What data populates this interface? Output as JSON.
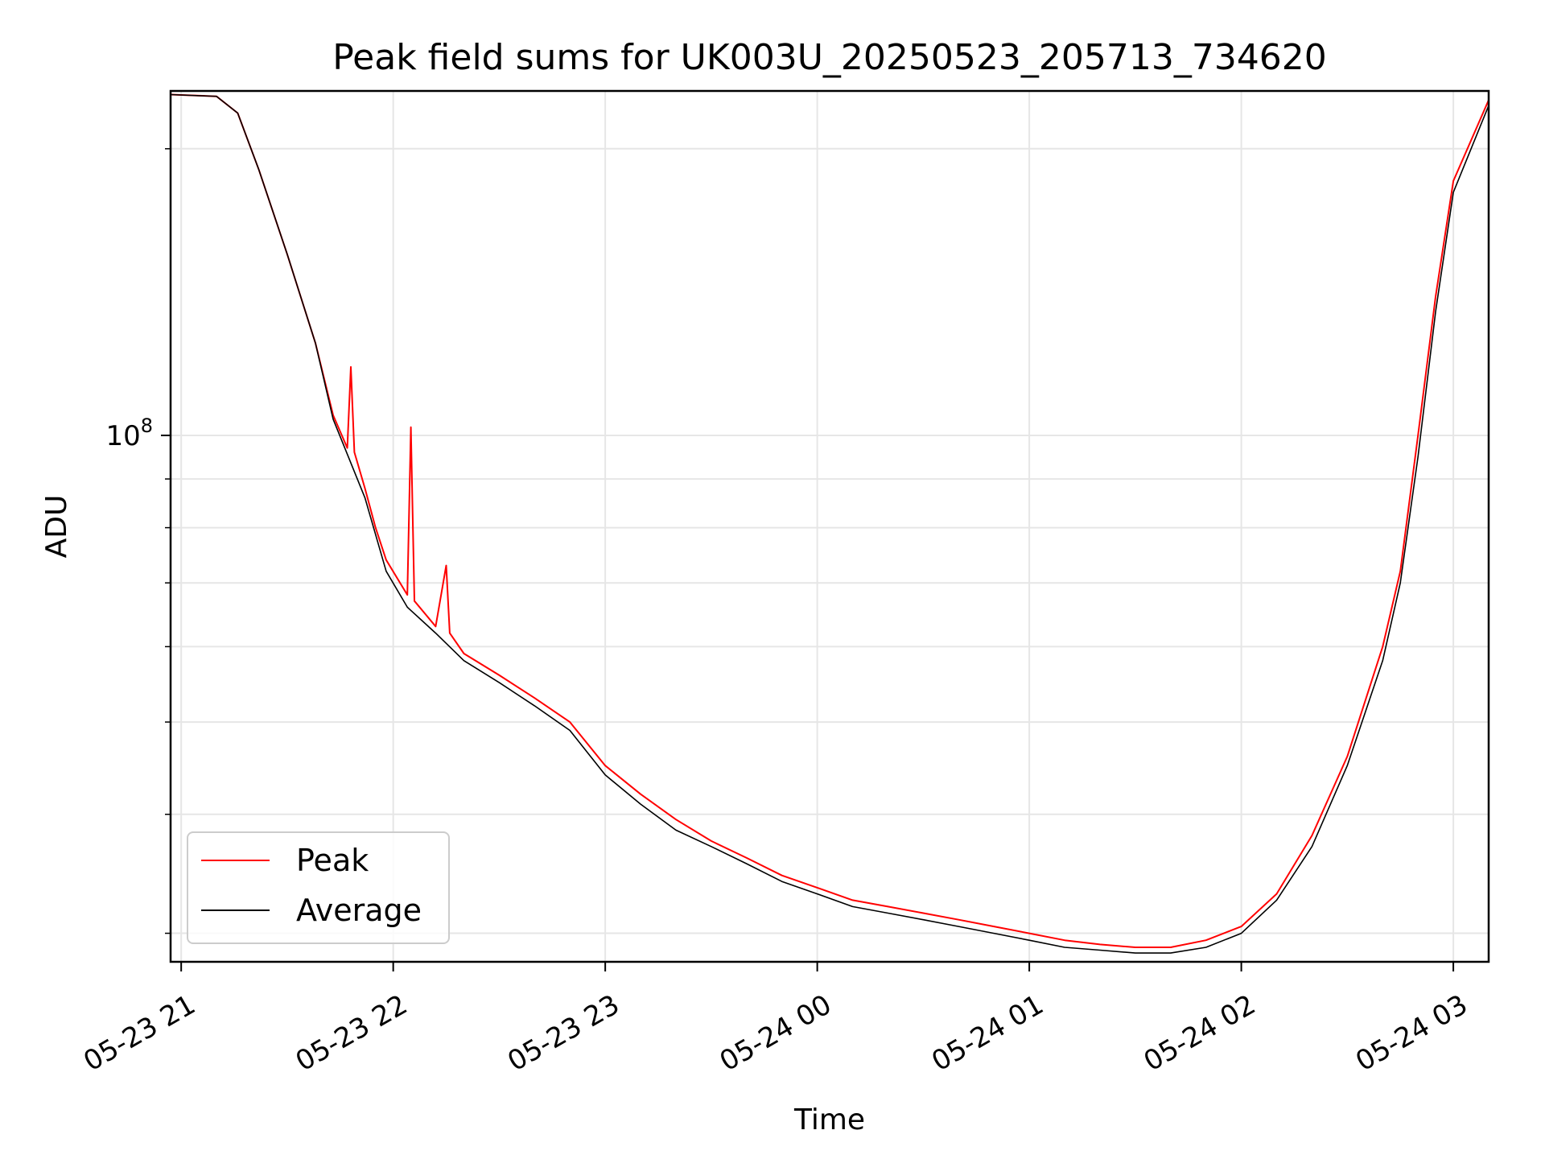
{
  "chart_data": {
    "type": "line",
    "title": "Peak field sums for UK003U_20250523_205713_734620",
    "xlabel": "Time",
    "ylabel": "ADU",
    "yscale": "log",
    "ylim": [
      28000000,
      230000000
    ],
    "xlim": [
      "2025-05-23 20:57",
      "2025-05-24 03:10"
    ],
    "x_ticks": [
      {
        "value": "2025-05-23 21:00",
        "label": "05-23 21"
      },
      {
        "value": "2025-05-23 22:00",
        "label": "05-23 22"
      },
      {
        "value": "2025-05-23 23:00",
        "label": "05-23 23"
      },
      {
        "value": "2025-05-24 00:00",
        "label": "05-24 00"
      },
      {
        "value": "2025-05-24 01:00",
        "label": "05-24 01"
      },
      {
        "value": "2025-05-24 02:00",
        "label": "05-24 02"
      },
      {
        "value": "2025-05-24 03:00",
        "label": "05-24 03"
      }
    ],
    "y_major_ticks": [
      {
        "value": 100000000,
        "label": "10^8"
      }
    ],
    "y_minor_ticks": [
      30000000,
      40000000,
      50000000,
      60000000,
      70000000,
      80000000,
      90000000,
      200000000
    ],
    "grid": true,
    "legend": {
      "placement": "lower-left"
    },
    "series": [
      {
        "name": "Peak",
        "color": "#ff0000",
        "points": [
          [
            "2025-05-23 20:57",
            228000000
          ],
          [
            "2025-05-23 21:10",
            227000000
          ],
          [
            "2025-05-23 21:16",
            218000000
          ],
          [
            "2025-05-23 21:22",
            190000000
          ],
          [
            "2025-05-23 21:30",
            155000000
          ],
          [
            "2025-05-23 21:38",
            125000000
          ],
          [
            "2025-05-23 21:43",
            105000000
          ],
          [
            "2025-05-23 21:47",
            97000000
          ],
          [
            "2025-05-23 21:48",
            118000000
          ],
          [
            "2025-05-23 21:49",
            96000000
          ],
          [
            "2025-05-23 21:52",
            88000000
          ],
          [
            "2025-05-23 21:55",
            80000000
          ],
          [
            "2025-05-23 21:58",
            74000000
          ],
          [
            "2025-05-23 22:04",
            68000000
          ],
          [
            "2025-05-23 22:05",
            102000000
          ],
          [
            "2025-05-23 22:06",
            67000000
          ],
          [
            "2025-05-23 22:12",
            63000000
          ],
          [
            "2025-05-23 22:15",
            73000000
          ],
          [
            "2025-05-23 22:16",
            62000000
          ],
          [
            "2025-05-23 22:20",
            59000000
          ],
          [
            "2025-05-23 22:30",
            56000000
          ],
          [
            "2025-05-23 22:40",
            53000000
          ],
          [
            "2025-05-23 22:50",
            50000000
          ],
          [
            "2025-05-23 23:00",
            45000000
          ],
          [
            "2025-05-23 23:10",
            42000000
          ],
          [
            "2025-05-23 23:20",
            39500000
          ],
          [
            "2025-05-23 23:30",
            37500000
          ],
          [
            "2025-05-23 23:40",
            36000000
          ],
          [
            "2025-05-23 23:50",
            34500000
          ],
          [
            "2025-05-24 00:00",
            33500000
          ],
          [
            "2025-05-24 00:10",
            32500000
          ],
          [
            "2025-05-24 00:20",
            32000000
          ],
          [
            "2025-05-24 00:30",
            31500000
          ],
          [
            "2025-05-24 00:40",
            31000000
          ],
          [
            "2025-05-24 00:50",
            30500000
          ],
          [
            "2025-05-24 01:00",
            30000000
          ],
          [
            "2025-05-24 01:10",
            29500000
          ],
          [
            "2025-05-24 01:20",
            29200000
          ],
          [
            "2025-05-24 01:30",
            29000000
          ],
          [
            "2025-05-24 01:40",
            29000000
          ],
          [
            "2025-05-24 01:50",
            29500000
          ],
          [
            "2025-05-24 02:00",
            30500000
          ],
          [
            "2025-05-24 02:10",
            33000000
          ],
          [
            "2025-05-24 02:20",
            38000000
          ],
          [
            "2025-05-24 02:30",
            46000000
          ],
          [
            "2025-05-24 02:40",
            60000000
          ],
          [
            "2025-05-24 02:45",
            72000000
          ],
          [
            "2025-05-24 02:50",
            100000000
          ],
          [
            "2025-05-24 02:55",
            140000000
          ],
          [
            "2025-05-24 03:00",
            185000000
          ],
          [
            "2025-05-24 03:10",
            225000000
          ]
        ]
      },
      {
        "name": "Average",
        "color": "#000000",
        "points": [
          [
            "2025-05-23 20:57",
            228000000
          ],
          [
            "2025-05-23 21:10",
            227000000
          ],
          [
            "2025-05-23 21:16",
            218000000
          ],
          [
            "2025-05-23 21:22",
            190000000
          ],
          [
            "2025-05-23 21:30",
            155000000
          ],
          [
            "2025-05-23 21:38",
            125000000
          ],
          [
            "2025-05-23 21:43",
            104000000
          ],
          [
            "2025-05-23 21:52",
            86000000
          ],
          [
            "2025-05-23 21:58",
            72000000
          ],
          [
            "2025-05-23 22:04",
            66000000
          ],
          [
            "2025-05-23 22:12",
            62000000
          ],
          [
            "2025-05-23 22:20",
            58000000
          ],
          [
            "2025-05-23 22:30",
            55000000
          ],
          [
            "2025-05-23 22:40",
            52000000
          ],
          [
            "2025-05-23 22:50",
            49000000
          ],
          [
            "2025-05-23 23:00",
            44000000
          ],
          [
            "2025-05-23 23:10",
            41000000
          ],
          [
            "2025-05-23 23:20",
            38500000
          ],
          [
            "2025-05-23 23:30",
            37000000
          ],
          [
            "2025-05-23 23:40",
            35500000
          ],
          [
            "2025-05-23 23:50",
            34000000
          ],
          [
            "2025-05-24 00:00",
            33000000
          ],
          [
            "2025-05-24 00:10",
            32000000
          ],
          [
            "2025-05-24 00:20",
            31500000
          ],
          [
            "2025-05-24 00:30",
            31000000
          ],
          [
            "2025-05-24 00:40",
            30500000
          ],
          [
            "2025-05-24 00:50",
            30000000
          ],
          [
            "2025-05-24 01:00",
            29500000
          ],
          [
            "2025-05-24 01:10",
            29000000
          ],
          [
            "2025-05-24 01:20",
            28800000
          ],
          [
            "2025-05-24 01:30",
            28600000
          ],
          [
            "2025-05-24 01:40",
            28600000
          ],
          [
            "2025-05-24 01:50",
            29000000
          ],
          [
            "2025-05-24 02:00",
            30000000
          ],
          [
            "2025-05-24 02:10",
            32500000
          ],
          [
            "2025-05-24 02:20",
            37000000
          ],
          [
            "2025-05-24 02:30",
            45000000
          ],
          [
            "2025-05-24 02:40",
            58000000
          ],
          [
            "2025-05-24 02:45",
            70000000
          ],
          [
            "2025-05-24 02:50",
            95000000
          ],
          [
            "2025-05-24 02:55",
            135000000
          ],
          [
            "2025-05-24 03:00",
            180000000
          ],
          [
            "2025-05-24 03:10",
            222000000
          ]
        ]
      }
    ]
  }
}
